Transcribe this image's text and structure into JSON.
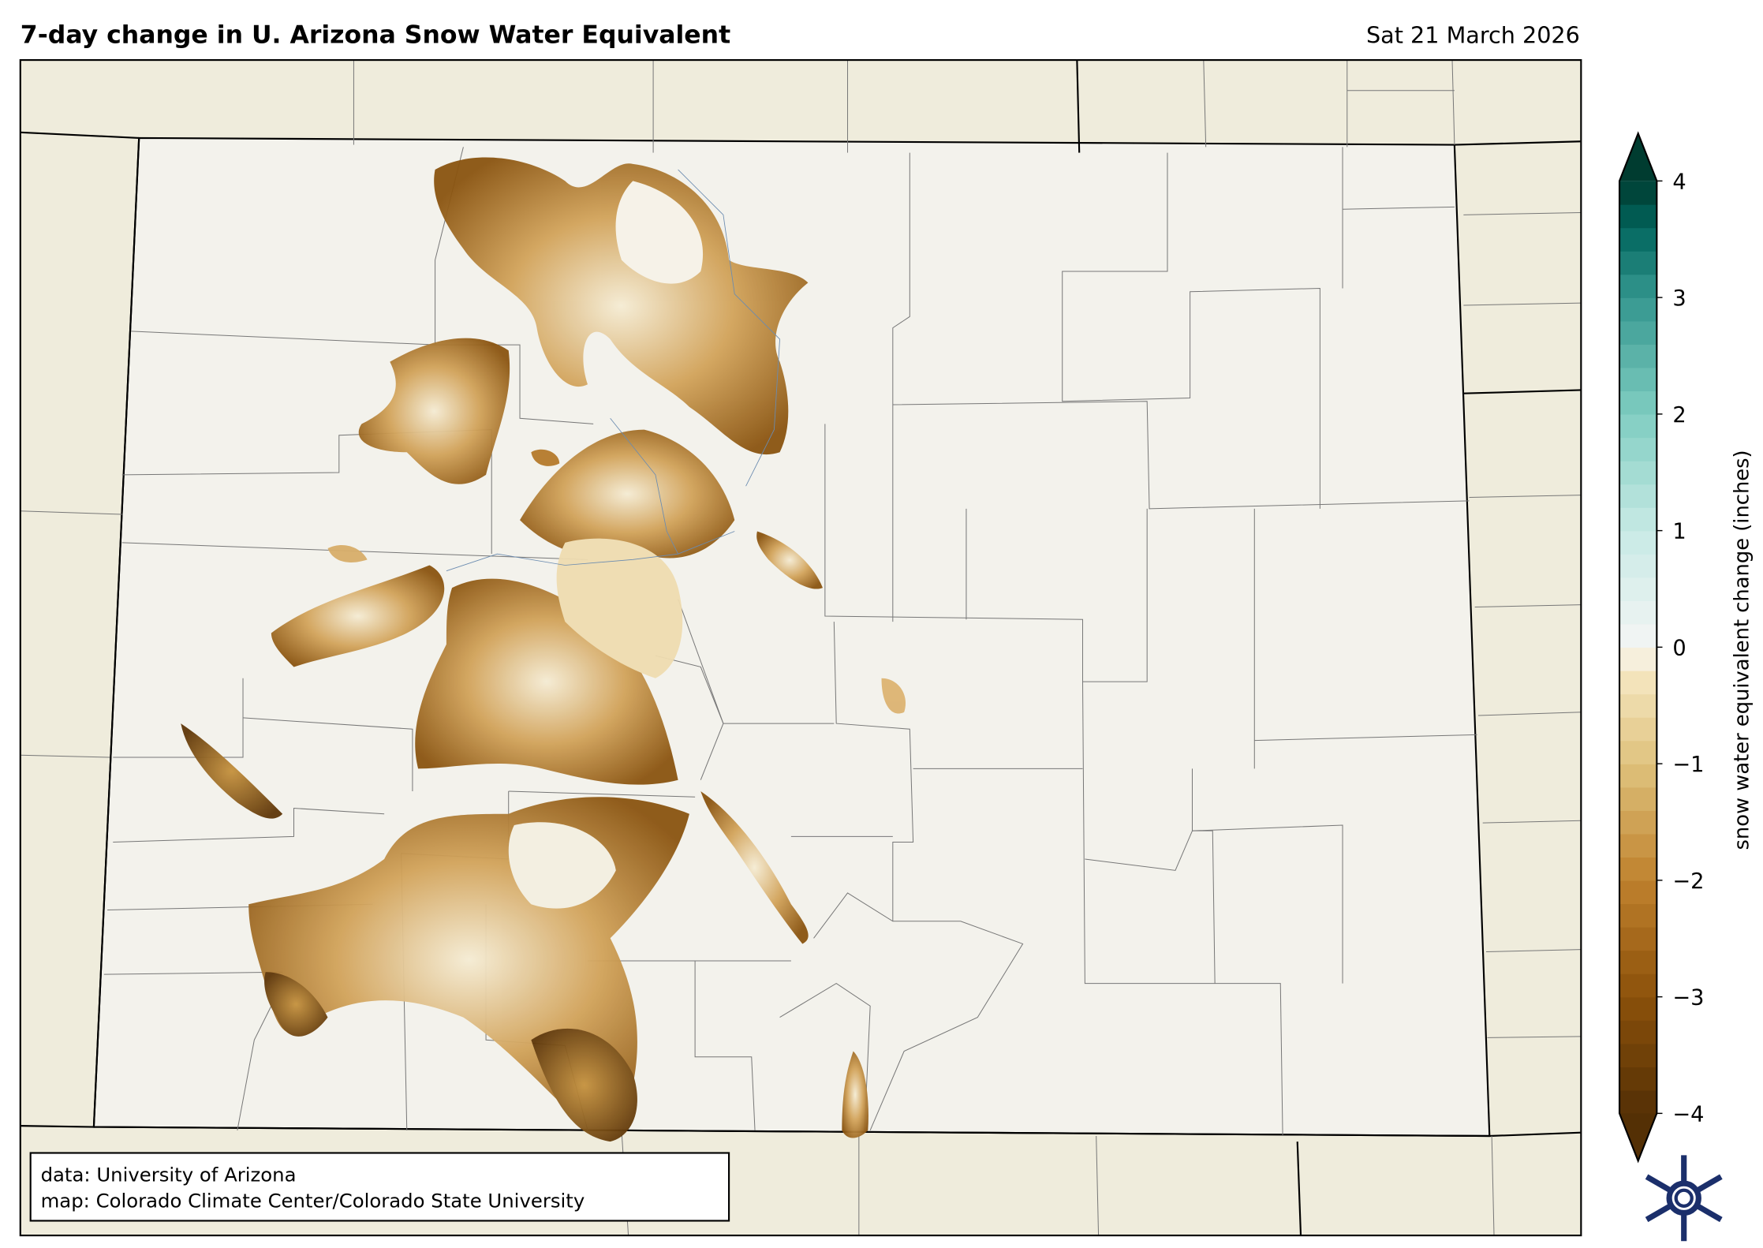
{
  "title": "7-day change in U. Arizona Snow Water Equivalent",
  "date": "Sat 21 March 2026",
  "colorbar": {
    "label": "snow water equivalent change (inches)",
    "min": -4,
    "max": 4,
    "step": 0.2,
    "extend": "both",
    "colormap": "BrBG",
    "ticks": [
      "4",
      "3",
      "2",
      "1",
      "0",
      "−1",
      "−2",
      "−3",
      "−4"
    ]
  },
  "credits": {
    "line1": "data: University of Arizona",
    "line2": "map: Colorado Climate Center/Colorado State University"
  },
  "colors": {
    "background_land": "#efecdc",
    "colorado_fill": "#f3f2ec",
    "logo": "#1b2f6b"
  },
  "logo": "snowflake-logo"
}
